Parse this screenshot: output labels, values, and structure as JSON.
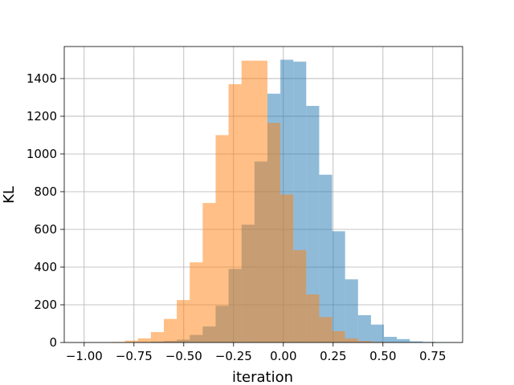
{
  "chart_data": {
    "type": "bar",
    "xlabel": "iteration",
    "ylabel": "KL",
    "xlim": [
      -1.1,
      0.9
    ],
    "ylim": [
      0,
      1570
    ],
    "grid": true,
    "x_ticks": [
      -1.0,
      -0.75,
      -0.5,
      -0.25,
      0.0,
      0.25,
      0.5,
      0.75
    ],
    "x_tick_labels": [
      "−1.00",
      "−0.75",
      "−0.50",
      "−0.25",
      "0.00",
      "0.25",
      "0.50",
      "0.75"
    ],
    "y_ticks": [
      0,
      200,
      400,
      600,
      800,
      1000,
      1200,
      1400
    ],
    "y_tick_labels": [
      "0",
      "200",
      "400",
      "600",
      "800",
      "1000",
      "1200",
      "1400"
    ],
    "series": [
      {
        "color": "#1f77b4",
        "alpha": 0.5,
        "bins": [
          {
            "x0": -0.99,
            "x1": -0.925,
            "count": 1
          },
          {
            "x0": -0.925,
            "x1": -0.86,
            "count": 1
          },
          {
            "x0": -0.86,
            "x1": -0.795,
            "count": 1
          },
          {
            "x0": -0.795,
            "x1": -0.73,
            "count": 2
          },
          {
            "x0": -0.73,
            "x1": -0.665,
            "count": 3
          },
          {
            "x0": -0.665,
            "x1": -0.6,
            "count": 5
          },
          {
            "x0": -0.6,
            "x1": -0.535,
            "count": 8
          },
          {
            "x0": -0.535,
            "x1": -0.47,
            "count": 15
          },
          {
            "x0": -0.47,
            "x1": -0.405,
            "count": 40
          },
          {
            "x0": -0.405,
            "x1": -0.34,
            "count": 85
          },
          {
            "x0": -0.34,
            "x1": -0.275,
            "count": 195
          },
          {
            "x0": -0.275,
            "x1": -0.21,
            "count": 390
          },
          {
            "x0": -0.21,
            "x1": -0.145,
            "count": 625
          },
          {
            "x0": -0.145,
            "x1": -0.08,
            "count": 960
          },
          {
            "x0": -0.08,
            "x1": -0.015,
            "count": 1320
          },
          {
            "x0": -0.015,
            "x1": 0.05,
            "count": 1500
          },
          {
            "x0": 0.05,
            "x1": 0.115,
            "count": 1490
          },
          {
            "x0": 0.115,
            "x1": 0.18,
            "count": 1255
          },
          {
            "x0": 0.18,
            "x1": 0.245,
            "count": 890
          },
          {
            "x0": 0.245,
            "x1": 0.31,
            "count": 590
          },
          {
            "x0": 0.31,
            "x1": 0.375,
            "count": 335
          },
          {
            "x0": 0.375,
            "x1": 0.44,
            "count": 145
          },
          {
            "x0": 0.44,
            "x1": 0.505,
            "count": 95
          },
          {
            "x0": 0.505,
            "x1": 0.57,
            "count": 30
          },
          {
            "x0": 0.57,
            "x1": 0.635,
            "count": 18
          },
          {
            "x0": 0.635,
            "x1": 0.7,
            "count": 6
          },
          {
            "x0": 0.7,
            "x1": 0.765,
            "count": 3
          },
          {
            "x0": 0.765,
            "x1": 0.83,
            "count": 1
          },
          {
            "x0": 0.83,
            "x1": 0.895,
            "count": 1
          }
        ]
      },
      {
        "color": "#ff7f0e",
        "alpha": 0.5,
        "bins": [
          {
            "x0": -0.86,
            "x1": -0.795,
            "count": 3
          },
          {
            "x0": -0.795,
            "x1": -0.73,
            "count": 10
          },
          {
            "x0": -0.73,
            "x1": -0.665,
            "count": 22
          },
          {
            "x0": -0.665,
            "x1": -0.6,
            "count": 55
          },
          {
            "x0": -0.6,
            "x1": -0.535,
            "count": 125
          },
          {
            "x0": -0.535,
            "x1": -0.47,
            "count": 225
          },
          {
            "x0": -0.47,
            "x1": -0.405,
            "count": 425
          },
          {
            "x0": -0.405,
            "x1": -0.34,
            "count": 740
          },
          {
            "x0": -0.34,
            "x1": -0.275,
            "count": 1100
          },
          {
            "x0": -0.275,
            "x1": -0.21,
            "count": 1370
          },
          {
            "x0": -0.21,
            "x1": -0.145,
            "count": 1495
          },
          {
            "x0": -0.145,
            "x1": -0.08,
            "count": 1495
          },
          {
            "x0": -0.08,
            "x1": -0.015,
            "count": 1165
          },
          {
            "x0": -0.015,
            "x1": 0.05,
            "count": 785
          },
          {
            "x0": 0.05,
            "x1": 0.115,
            "count": 490
          },
          {
            "x0": 0.115,
            "x1": 0.18,
            "count": 255
          },
          {
            "x0": 0.18,
            "x1": 0.245,
            "count": 135
          },
          {
            "x0": 0.245,
            "x1": 0.31,
            "count": 60
          },
          {
            "x0": 0.31,
            "x1": 0.375,
            "count": 22
          },
          {
            "x0": 0.375,
            "x1": 0.44,
            "count": 8
          },
          {
            "x0": 0.44,
            "x1": 0.505,
            "count": 3
          },
          {
            "x0": 0.505,
            "x1": 0.57,
            "count": 1
          }
        ]
      }
    ]
  }
}
